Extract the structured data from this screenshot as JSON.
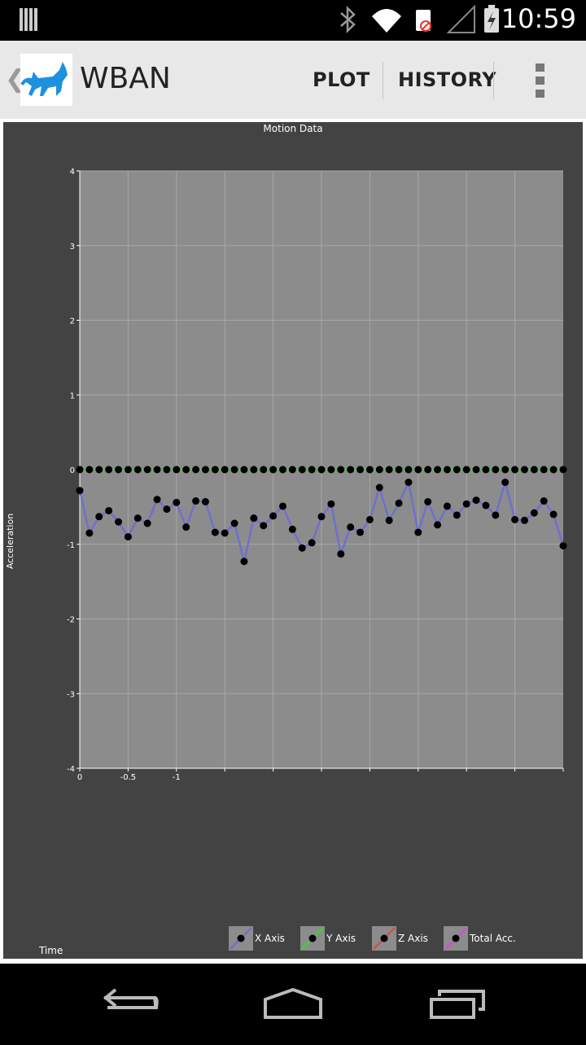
{
  "status_bar": {
    "time": "10:59"
  },
  "action_bar": {
    "title": "WBAN",
    "buttons": [
      "PLOT",
      "HISTORY"
    ]
  },
  "colors": {
    "x_axis": "#6f6fd0",
    "y_axis": "#3ecf3e",
    "z_axis": "#d05050",
    "total": "#d050d0",
    "plot_bg": "#8c8c8c",
    "frame_bg": "#434343"
  },
  "chart_data": {
    "type": "line",
    "title": "Motion Data",
    "xlabel": "Time",
    "ylabel": "Acceleration",
    "ylim": [
      -4,
      4
    ],
    "y_ticks": [
      "4",
      "3",
      "2",
      "1",
      "0",
      "-1",
      "-2",
      "-3",
      "-4"
    ],
    "x_ticks": [
      "0",
      "-0.5",
      "-1"
    ],
    "grid": true,
    "legend": [
      "X Axis",
      "Y Axis",
      "Z Axis",
      "Total Acc."
    ],
    "series": [
      {
        "name": "X Axis",
        "values": [
          -0.28,
          -0.85,
          -0.63,
          -0.55,
          -0.7,
          -0.9,
          -0.65,
          -0.72,
          -0.4,
          -0.53,
          -0.44,
          -0.77,
          -0.42,
          -0.43,
          -0.84,
          -0.85,
          -0.72,
          -1.23,
          -0.65,
          -0.75,
          -0.62,
          -0.49,
          -0.8,
          -1.05,
          -0.98,
          -0.63,
          -0.46,
          -1.13,
          -0.77,
          -0.84,
          -0.67,
          -0.24,
          -0.68,
          -0.45,
          -0.17,
          -0.84,
          -0.43,
          -0.74,
          -0.49,
          -0.61,
          -0.46,
          -0.41,
          -0.48,
          -0.61,
          -0.17,
          -0.67,
          -0.68,
          -0.58,
          -0.42,
          -0.6,
          -1.02
        ]
      },
      {
        "name": "Y Axis",
        "values": [
          0,
          0,
          0,
          0,
          0,
          0,
          0,
          0,
          0,
          0,
          0,
          0,
          0,
          0,
          0,
          0,
          0,
          0,
          0,
          0,
          0,
          0,
          0,
          0,
          0,
          0,
          0,
          0,
          0,
          0,
          0,
          0,
          0,
          0,
          0,
          0,
          0,
          0,
          0,
          0,
          0,
          0,
          0,
          0,
          0,
          0,
          0,
          0,
          0,
          0,
          0
        ]
      }
    ]
  }
}
